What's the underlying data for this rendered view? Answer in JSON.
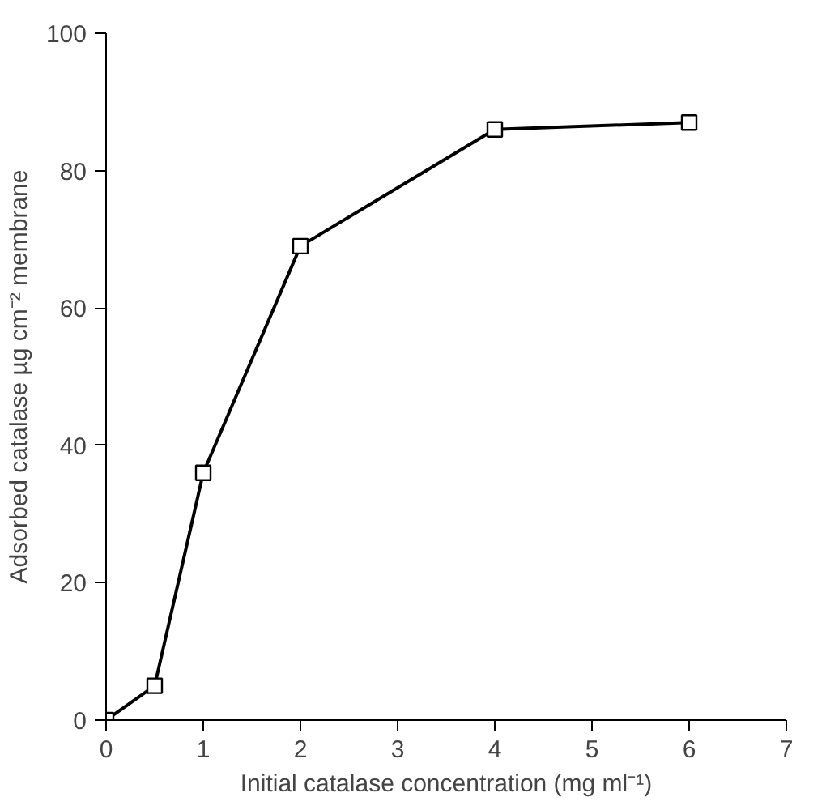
{
  "chart_data": {
    "type": "line",
    "xlabel": "Initial catalase concentration (mg ml⁻¹)",
    "ylabel": "Adsorbed catalase µg cm⁻² membrane",
    "x": [
      0,
      0.5,
      1,
      2,
      4,
      6
    ],
    "series": [
      {
        "color": "#000000",
        "values": [
          0,
          5,
          36,
          69,
          86,
          87
        ]
      }
    ],
    "xlim": [
      0,
      7
    ],
    "xticks": [
      0,
      1,
      2,
      3,
      4,
      5,
      6,
      7
    ],
    "ylim": [
      0,
      100
    ],
    "yticks": [
      0,
      20,
      40,
      60,
      80,
      100
    ],
    "grid": false,
    "marker": "square",
    "line_style": "solid"
  }
}
